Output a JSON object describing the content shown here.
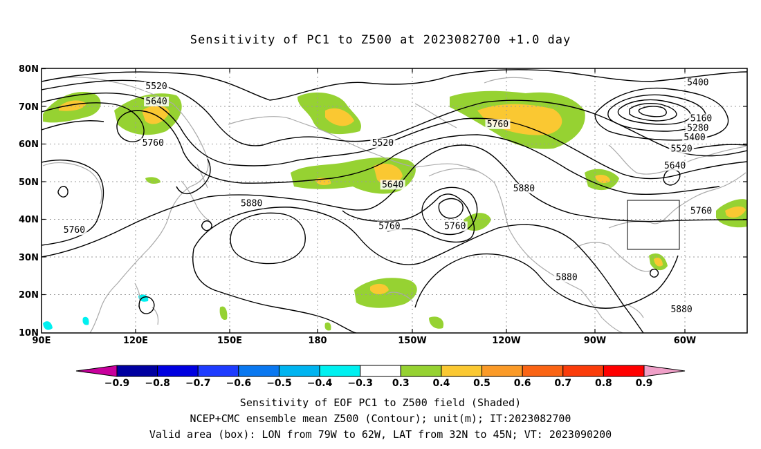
{
  "title": "Sensitivity of PC1 to Z500 at 2023082700 +1.0 day",
  "map": {
    "lat_labels": [
      "80N",
      "70N",
      "60N",
      "50N",
      "40N",
      "30N",
      "20N",
      "10N"
    ],
    "lon_labels": [
      "90E",
      "120E",
      "150E",
      "180",
      "150W",
      "120W",
      "90W",
      "60W"
    ],
    "contour_labels": [
      {
        "text": "5520",
        "lon": 125,
        "lat": 74.5
      },
      {
        "text": "5640",
        "lon": 125,
        "lat": 70.5
      },
      {
        "text": "5760",
        "lon": 124,
        "lat": 59.5
      },
      {
        "text": "5760",
        "lon": 100,
        "lat": 36.5
      },
      {
        "text": "5880",
        "lon": 154,
        "lat": 43.5
      },
      {
        "text": "5520",
        "lon": 194,
        "lat": 59.5
      },
      {
        "text": "5640",
        "lon": 197,
        "lat": 48.5
      },
      {
        "text": "5760",
        "lon": 196,
        "lat": 37.5
      },
      {
        "text": "5760",
        "lon": 216,
        "lat": 37.5
      },
      {
        "text": "5880",
        "lon": 237,
        "lat": 47.5
      },
      {
        "text": "5760",
        "lon": 229,
        "lat": 64.5
      },
      {
        "text": "5880",
        "lon": 250,
        "lat": 24.0
      },
      {
        "text": "5880",
        "lon": 285,
        "lat": 15.5
      },
      {
        "text": "5400",
        "lon": 290,
        "lat": 75.5
      },
      {
        "text": "5160",
        "lon": 291,
        "lat": 66.0
      },
      {
        "text": "5280",
        "lon": 290,
        "lat": 63.5
      },
      {
        "text": "5400",
        "lon": 289,
        "lat": 61.0
      },
      {
        "text": "5520",
        "lon": 285,
        "lat": 58.0
      },
      {
        "text": "5640",
        "lon": 283,
        "lat": 53.5
      },
      {
        "text": "5760",
        "lon": 291,
        "lat": 41.5
      }
    ]
  },
  "colorbar": {
    "labels": [
      "-0.9",
      "-0.8",
      "-0.7",
      "-0.6",
      "-0.5",
      "-0.4",
      "-0.3",
      "0.3",
      "0.4",
      "0.5",
      "0.6",
      "0.7",
      "0.8",
      "0.9"
    ],
    "colors": [
      "#0000a0",
      "#0000e0",
      "#1e3cff",
      "#0a78f0",
      "#00b4f0",
      "#00f0f0",
      "#ffffff",
      "#96d232",
      "#fac832",
      "#fa9a28",
      "#fa6414",
      "#fa3c0a",
      "#ff0000"
    ],
    "low_arrow_color": "#c8009c",
    "high_arrow_color": "#f0a0c8"
  },
  "caption": {
    "line1": "Sensitivity of EOF PC1 to Z500 field (Shaded)",
    "line2": "NCEP+CMC ensemble mean Z500 (Contour); unit(m); IT:2023082700",
    "line3": "Valid area (box): LON from 79W to 62W, LAT from 32N to 45N; VT: 2023090200"
  },
  "valid_box": {
    "lon_min": -79,
    "lon_max": -62,
    "lat_min": 32,
    "lat_max": 45
  }
}
